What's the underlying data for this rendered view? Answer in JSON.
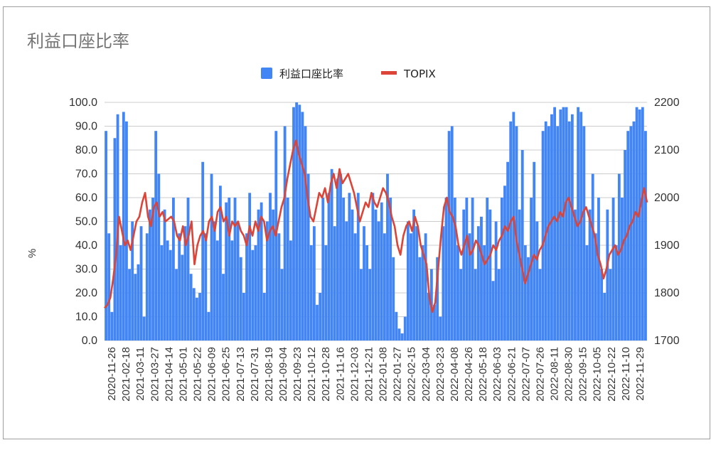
{
  "chart_data": {
    "type": "bar+line",
    "title": "利益口座比率",
    "legend": [
      "利益口座比率",
      "TOPIX"
    ],
    "legend_position": "top",
    "ylabel_left": "%",
    "ylim_left": [
      0,
      100
    ],
    "yticks_left": [
      "0.0",
      "10.0",
      "20.0",
      "30.0",
      "40.0",
      "50.0",
      "60.0",
      "70.0",
      "80.0",
      "90.0",
      "100.0"
    ],
    "ylim_right": [
      1700,
      2200
    ],
    "yticks_right": [
      "1700",
      "1800",
      "1900",
      "2000",
      "2100",
      "2200"
    ],
    "xticks": [
      "2020-11-26",
      "2021-02-18",
      "2021-03-11",
      "2021-03-27",
      "2021-04-14",
      "2021-05-01",
      "2021-05-22",
      "2021-06-09",
      "2021-06-25",
      "2021-07-13",
      "2021-07-31",
      "2021-08-19",
      "2021-09-04",
      "2021-09-23",
      "2021-10-12",
      "2021-10-28",
      "2021-11-16",
      "2021-12-03",
      "2021-12-21",
      "2022-01-08",
      "2022-01-27",
      "2022-02-15",
      "2022-03-04",
      "2022-03-23",
      "2022-04-08",
      "2022-04-26",
      "2022-05-18",
      "2022-06-03",
      "2022-06-21",
      "2022-07-07",
      "2022-07-26",
      "2022-08-11",
      "2022-08-30",
      "2022-09-15",
      "2022-10-05",
      "2022-10-22",
      "2022-11-10",
      "2022-11-29"
    ],
    "colors": {
      "bars": "#4285f4",
      "line": "#db4437"
    },
    "series": [
      {
        "name": "利益口座比率",
        "type": "bar",
        "axis": "left",
        "values": [
          88,
          45,
          12,
          85,
          95,
          40,
          96,
          92,
          30,
          50,
          28,
          32,
          48,
          10,
          45,
          55,
          60,
          88,
          70,
          40,
          55,
          42,
          38,
          60,
          30,
          45,
          36,
          48,
          60,
          28,
          22,
          18,
          20,
          75,
          45,
          12,
          70,
          50,
          42,
          65,
          28,
          58,
          60,
          42,
          60,
          50,
          35,
          20,
          45,
          62,
          38,
          40,
          55,
          58,
          20,
          50,
          62,
          55,
          88,
          45,
          30,
          90,
          60,
          42,
          98,
          100,
          99,
          96,
          90,
          70,
          40,
          48,
          15,
          20,
          60,
          40,
          62,
          72,
          48,
          68,
          70,
          60,
          50,
          62,
          55,
          45,
          62,
          30,
          48,
          40,
          30,
          62,
          55,
          50,
          58,
          45,
          70,
          60,
          35,
          12,
          5,
          3,
          10,
          50,
          45,
          55,
          48,
          35,
          40,
          45,
          20,
          30,
          15,
          35,
          10,
          48,
          60,
          88,
          90,
          60,
          40,
          30,
          55,
          60,
          45,
          60,
          30,
          48,
          52,
          40,
          60,
          55,
          25,
          50,
          30,
          60,
          65,
          75,
          92,
          96,
          90,
          55,
          80,
          40,
          35,
          60,
          75,
          50,
          30,
          88,
          92,
          90,
          95,
          98,
          90,
          97,
          98,
          98,
          92,
          95,
          55,
          98,
          96,
          90,
          40,
          55,
          70,
          45,
          60,
          30,
          20,
          55,
          30,
          60,
          40,
          70,
          60,
          80,
          88,
          90,
          92,
          98,
          97,
          98,
          88
        ]
      },
      {
        "name": "TOPIX",
        "type": "line",
        "axis": "right",
        "values": [
          1768,
          1775,
          1790,
          1830,
          1880,
          1960,
          1930,
          1900,
          1910,
          1890,
          1920,
          1950,
          1960,
          1990,
          2010,
          1960,
          1940,
          1980,
          1990,
          1960,
          1970,
          1950,
          1955,
          1960,
          1950,
          1920,
          1910,
          1940,
          1900,
          1920,
          1950,
          1860,
          1900,
          1920,
          1930,
          1910,
          1950,
          1960,
          1930,
          1970,
          1980,
          1950,
          1960,
          1920,
          1950,
          1940,
          1950,
          1930,
          1920,
          1900,
          1940,
          1920,
          1950,
          1930,
          1960,
          1950,
          1910,
          1930,
          1940,
          1920,
          1950,
          1980,
          2000,
          2040,
          2070,
          2100,
          2120,
          2090,
          2070,
          2050,
          2000,
          1960,
          1950,
          1980,
          2010,
          2000,
          2020,
          1990,
          2030,
          2050,
          2020,
          2060,
          2030,
          2040,
          2050,
          2030,
          2010,
          1980,
          1950,
          1970,
          1990,
          1980,
          2010,
          1990,
          1980,
          2000,
          2020,
          2010,
          1990,
          1960,
          1940,
          1900,
          1880,
          1920,
          1940,
          1950,
          1930,
          1960,
          1940,
          1900,
          1880,
          1860,
          1790,
          1760,
          1780,
          1850,
          1920,
          1980,
          2000,
          1970,
          1960,
          1940,
          1900,
          1880,
          1900,
          1920,
          1880,
          1890,
          1910,
          1900,
          1880,
          1860,
          1870,
          1880,
          1900,
          1890,
          1910,
          1920,
          1940,
          1930,
          1950,
          1960,
          1910,
          1880,
          1850,
          1820,
          1840,
          1860,
          1880,
          1870,
          1890,
          1900,
          1920,
          1940,
          1950,
          1960,
          1950,
          1970,
          1960,
          1990,
          2000,
          1980,
          1960,
          1940,
          1950,
          1970,
          1980,
          1960,
          1940,
          1920,
          1880,
          1860,
          1830,
          1850,
          1880,
          1890,
          1900,
          1880,
          1890,
          1910,
          1920,
          1940,
          1950,
          1970,
          1960,
          1990,
          2020,
          1990
        ]
      }
    ]
  }
}
